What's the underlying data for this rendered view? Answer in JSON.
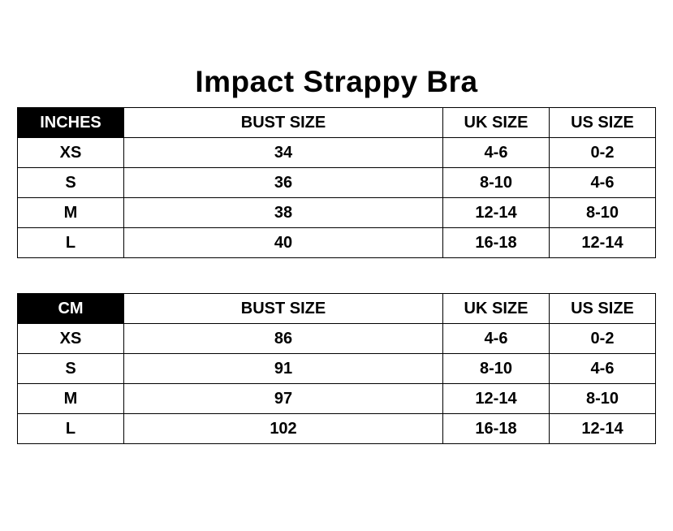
{
  "title": "Impact Strappy Bra",
  "tables": [
    {
      "unit": "INCHES",
      "headers": [
        "BUST SIZE",
        "UK SIZE",
        "US SIZE"
      ],
      "rows": [
        [
          "XS",
          "34",
          "4-6",
          "0-2"
        ],
        [
          "S",
          "36",
          "8-10",
          "4-6"
        ],
        [
          "M",
          "38",
          "12-14",
          "8-10"
        ],
        [
          "L",
          "40",
          "16-18",
          "12-14"
        ]
      ]
    },
    {
      "unit": "CM",
      "headers": [
        "BUST SIZE",
        "UK SIZE",
        "US SIZE"
      ],
      "rows": [
        [
          "XS",
          "86",
          "4-6",
          "0-2"
        ],
        [
          "S",
          "91",
          "8-10",
          "4-6"
        ],
        [
          "M",
          "97",
          "12-14",
          "8-10"
        ],
        [
          "L",
          "102",
          "16-18",
          "12-14"
        ]
      ]
    }
  ],
  "colors": {
    "header_bg": "#000000",
    "header_text": "#ffffff",
    "border": "#000000"
  }
}
